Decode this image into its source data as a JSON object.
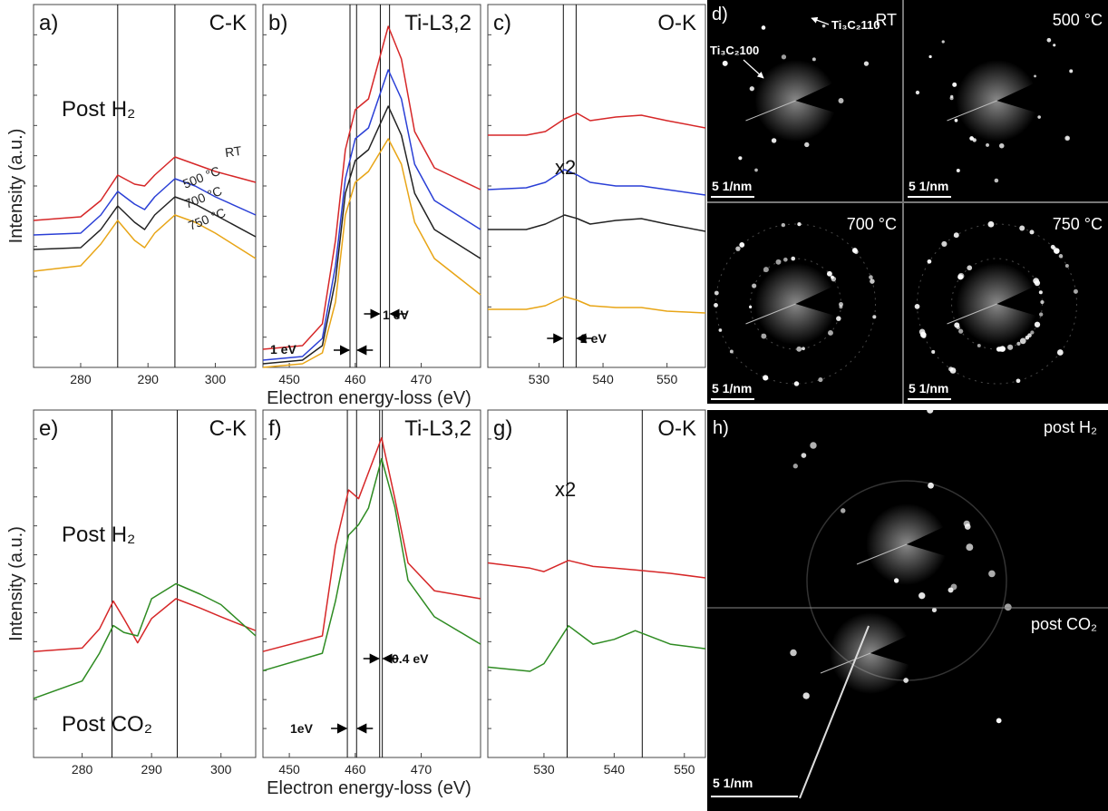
{
  "chart_data": [
    {
      "type": "line",
      "panel_label": "a)",
      "title": "C-K",
      "y_label": "Intensity (a.u.)",
      "annotations": [
        "Post H₂"
      ],
      "x": [
        273,
        280,
        283,
        285.5,
        288,
        289.5,
        291,
        294,
        297,
        300,
        306
      ],
      "xlim": [
        273,
        306
      ],
      "xticks": [
        280,
        290,
        300
      ],
      "ylim": [
        0,
        100
      ],
      "vlines": [
        285.5,
        294
      ],
      "series": [
        {
          "name": "RT",
          "color": "#d62728",
          "values": [
            40.5,
            41.5,
            46,
            53,
            50.5,
            50,
            53,
            58,
            56,
            54,
            51
          ]
        },
        {
          "name": "500 °C",
          "color": "#2a3fd6",
          "values": [
            36.5,
            37,
            42,
            48.5,
            45,
            43.5,
            47,
            52,
            50,
            47,
            42
          ]
        },
        {
          "name": "700 °C",
          "color": "#222222",
          "values": [
            32.5,
            33,
            38,
            44.5,
            40,
            38,
            42,
            47,
            45,
            42,
            36
          ]
        },
        {
          "name": "750 °C",
          "color": "#e8a516",
          "values": [
            26.5,
            28,
            34,
            40.5,
            35,
            33,
            37,
            42,
            40,
            37,
            30
          ]
        }
      ]
    },
    {
      "type": "line",
      "panel_label": "b)",
      "title": "Ti-L3,2",
      "x_label": "Electron energy-loss (eV)",
      "annotations": [
        "1 eV",
        "1 eV"
      ],
      "x": [
        446,
        452,
        455,
        457,
        458.5,
        460,
        462,
        465,
        467,
        469,
        472,
        479
      ],
      "xlim": [
        446,
        479
      ],
      "xticks": [
        450,
        460,
        470
      ],
      "ylim": [
        0,
        100
      ],
      "vlines": [
        459.2,
        460.2,
        463.8,
        465.2
      ],
      "series": [
        {
          "color": "#d62728",
          "values": [
            5,
            6,
            12,
            35,
            60,
            71,
            74,
            94,
            85,
            65,
            55,
            49
          ]
        },
        {
          "color": "#2a3fd6",
          "values": [
            2,
            3,
            8,
            28,
            52,
            63,
            66,
            82,
            74,
            56,
            46,
            38
          ]
        },
        {
          "color": "#222222",
          "values": [
            1,
            2,
            6,
            24,
            48,
            57,
            60,
            72,
            64,
            48,
            38,
            30
          ]
        },
        {
          "color": "#e8a516",
          "values": [
            0,
            1,
            4,
            18,
            42,
            51,
            54,
            63,
            56,
            40,
            30,
            20
          ]
        }
      ]
    },
    {
      "type": "line",
      "panel_label": "c)",
      "title": "O-K",
      "annotations": [
        "x2",
        "2 eV"
      ],
      "x": [
        522,
        528,
        531,
        534,
        536,
        538,
        542,
        546,
        550,
        556
      ],
      "xlim": [
        522,
        556
      ],
      "xticks": [
        530,
        540,
        550
      ],
      "ylim": [
        0,
        100
      ],
      "vlines": [
        533.8,
        535.8
      ],
      "series": [
        {
          "color": "#d62728",
          "values": [
            64,
            64,
            65,
            68.5,
            70,
            68,
            69,
            69.5,
            68,
            66
          ]
        },
        {
          "color": "#2a3fd6",
          "values": [
            49,
            49.5,
            51,
            54.5,
            53,
            51,
            50,
            50,
            49,
            47.5
          ]
        },
        {
          "color": "#222222",
          "values": [
            38,
            38,
            39.5,
            42,
            41,
            39.5,
            40.5,
            41,
            39.5,
            37.5
          ]
        },
        {
          "color": "#e8a516",
          "values": [
            16,
            16,
            17,
            19.5,
            18.5,
            17,
            16.5,
            16.5,
            15.5,
            15
          ]
        }
      ]
    },
    {
      "type": "line",
      "panel_label": "e)",
      "title": "C-K",
      "y_label": "Intensity (a.u.)",
      "annotations": [
        "Post H₂",
        "Post CO₂"
      ],
      "x": [
        273,
        280,
        282.5,
        284.5,
        286,
        288,
        290,
        293.5,
        297,
        300,
        305
      ],
      "xlim": [
        273,
        305
      ],
      "xticks": [
        280,
        290,
        300
      ],
      "ylim": [
        0,
        100
      ],
      "vlines": [
        284.3,
        293.7
      ],
      "series": [
        {
          "color": "#d62728",
          "values": [
            30.5,
            31.5,
            37,
            45,
            40,
            33,
            40,
            45.7,
            43,
            40.5,
            36.5
          ]
        },
        {
          "color": "#2e8b22",
          "values": [
            17,
            22,
            30,
            38,
            36,
            35,
            45.7,
            50,
            47,
            44,
            35
          ]
        }
      ]
    },
    {
      "type": "line",
      "panel_label": "f)",
      "title": "Ti-L3,2",
      "x_label": "Electron energy-loss (eV)",
      "annotations": [
        "1eV",
        "0.4 eV"
      ],
      "x": [
        446,
        455,
        457,
        459,
        460.5,
        462,
        464,
        466,
        468,
        472,
        479
      ],
      "xlim": [
        446,
        479
      ],
      "xticks": [
        450,
        460,
        470
      ],
      "ylim": [
        0,
        100
      ],
      "vlines": [
        458.8,
        460.2,
        463.7,
        464.1
      ],
      "series": [
        {
          "color": "#d62728",
          "values": [
            30.5,
            35,
            61,
            77,
            74.5,
            82,
            92,
            74.5,
            56,
            48,
            45.7
          ]
        },
        {
          "color": "#2e8b22",
          "values": [
            25,
            30,
            45,
            64,
            67,
            71.8,
            86,
            72,
            51,
            40.5,
            32.6
          ]
        }
      ]
    },
    {
      "type": "line",
      "panel_label": "g)",
      "title": "O-K",
      "annotations": [
        "x2"
      ],
      "x": [
        522,
        528,
        530,
        533.5,
        537,
        540,
        543,
        548,
        553
      ],
      "xlim": [
        522,
        553
      ],
      "xticks": [
        530,
        540,
        550
      ],
      "ylim": [
        0,
        100
      ],
      "vlines": [
        533.3,
        544
      ],
      "series": [
        {
          "color": "#d62728",
          "values": [
            56,
            54.5,
            53.5,
            56.7,
            55,
            54.5,
            54,
            53,
            51.7
          ]
        },
        {
          "color": "#2e8b22",
          "values": [
            26,
            24.8,
            27,
            37.9,
            32.6,
            34,
            36.5,
            32.6,
            31.3
          ]
        }
      ]
    }
  ],
  "diffraction": [
    {
      "panel_label": "d)",
      "annotations": [
        "Ti₃C₂100",
        "Ti₃C₂110"
      ],
      "tiles": [
        {
          "label": "RT",
          "scale_bar": "5 1/nm"
        },
        {
          "label": "500 °C",
          "scale_bar": "5 1/nm"
        },
        {
          "label": "700 °C",
          "scale_bar": "5 1/nm"
        },
        {
          "label": "750 °C",
          "scale_bar": "5 1/nm"
        }
      ]
    },
    {
      "panel_label": "h)",
      "scale_bar": "5 1/nm",
      "tiles": [
        {
          "label": "post H₂"
        },
        {
          "label": "post CO₂"
        }
      ]
    }
  ]
}
